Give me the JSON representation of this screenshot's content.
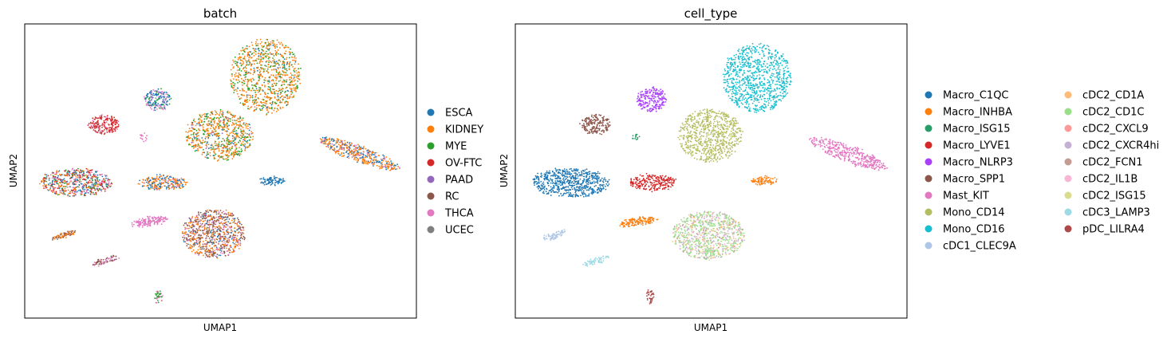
{
  "chart_data": [
    {
      "type": "scatter",
      "title": "batch",
      "xlabel": "UMAP1",
      "ylabel": "UMAP2",
      "grid": false,
      "ticks": false,
      "legend_position": "right",
      "legend": [
        {
          "label": "ESCA",
          "color": "#1f77b4"
        },
        {
          "label": "KIDNEY",
          "color": "#ff7f0e"
        },
        {
          "label": "MYE",
          "color": "#2ca02c"
        },
        {
          "label": "OV-FTC",
          "color": "#d62728"
        },
        {
          "label": "PAAD",
          "color": "#9467bd"
        },
        {
          "label": "RC",
          "color": "#8c564b"
        },
        {
          "label": "THCA",
          "color": "#e377c2"
        },
        {
          "label": "UCEC",
          "color": "#7f7f7f"
        }
      ]
    },
    {
      "type": "scatter",
      "title": "cell_type",
      "xlabel": "UMAP1",
      "ylabel": "UMAP2",
      "grid": false,
      "ticks": false,
      "legend_position": "right",
      "legend": [
        {
          "label": "Macro_C1QC",
          "color": "#1f77b4"
        },
        {
          "label": "Macro_INHBA",
          "color": "#ff7f0e"
        },
        {
          "label": "Macro_ISG15",
          "color": "#279e68"
        },
        {
          "label": "Macro_LYVE1",
          "color": "#d62728"
        },
        {
          "label": "Macro_NLRP3",
          "color": "#aa40fc"
        },
        {
          "label": "Macro_SPP1",
          "color": "#8c564b"
        },
        {
          "label": "Mast_KIT",
          "color": "#e377c2"
        },
        {
          "label": "Mono_CD14",
          "color": "#b5bd61"
        },
        {
          "label": "Mono_CD16",
          "color": "#17becf"
        },
        {
          "label": "cDC1_CLEC9A",
          "color": "#aec7e8"
        },
        {
          "label": "cDC2_CD1A",
          "color": "#ffbb78"
        },
        {
          "label": "cDC2_CD1C",
          "color": "#98df8a"
        },
        {
          "label": "cDC2_CXCL9",
          "color": "#ff9896"
        },
        {
          "label": "cDC2_CXCR4hi",
          "color": "#c5b0d5"
        },
        {
          "label": "cDC2_FCN1",
          "color": "#c49c94"
        },
        {
          "label": "cDC2_IL1B",
          "color": "#f7b6d2"
        },
        {
          "label": "cDC2_ISG15",
          "color": "#dbdb8d"
        },
        {
          "label": "cDC3_LAMP3",
          "color": "#9edae5"
        },
        {
          "label": "pDC_LILRA4",
          "color": "#ad494a"
        }
      ]
    }
  ]
}
